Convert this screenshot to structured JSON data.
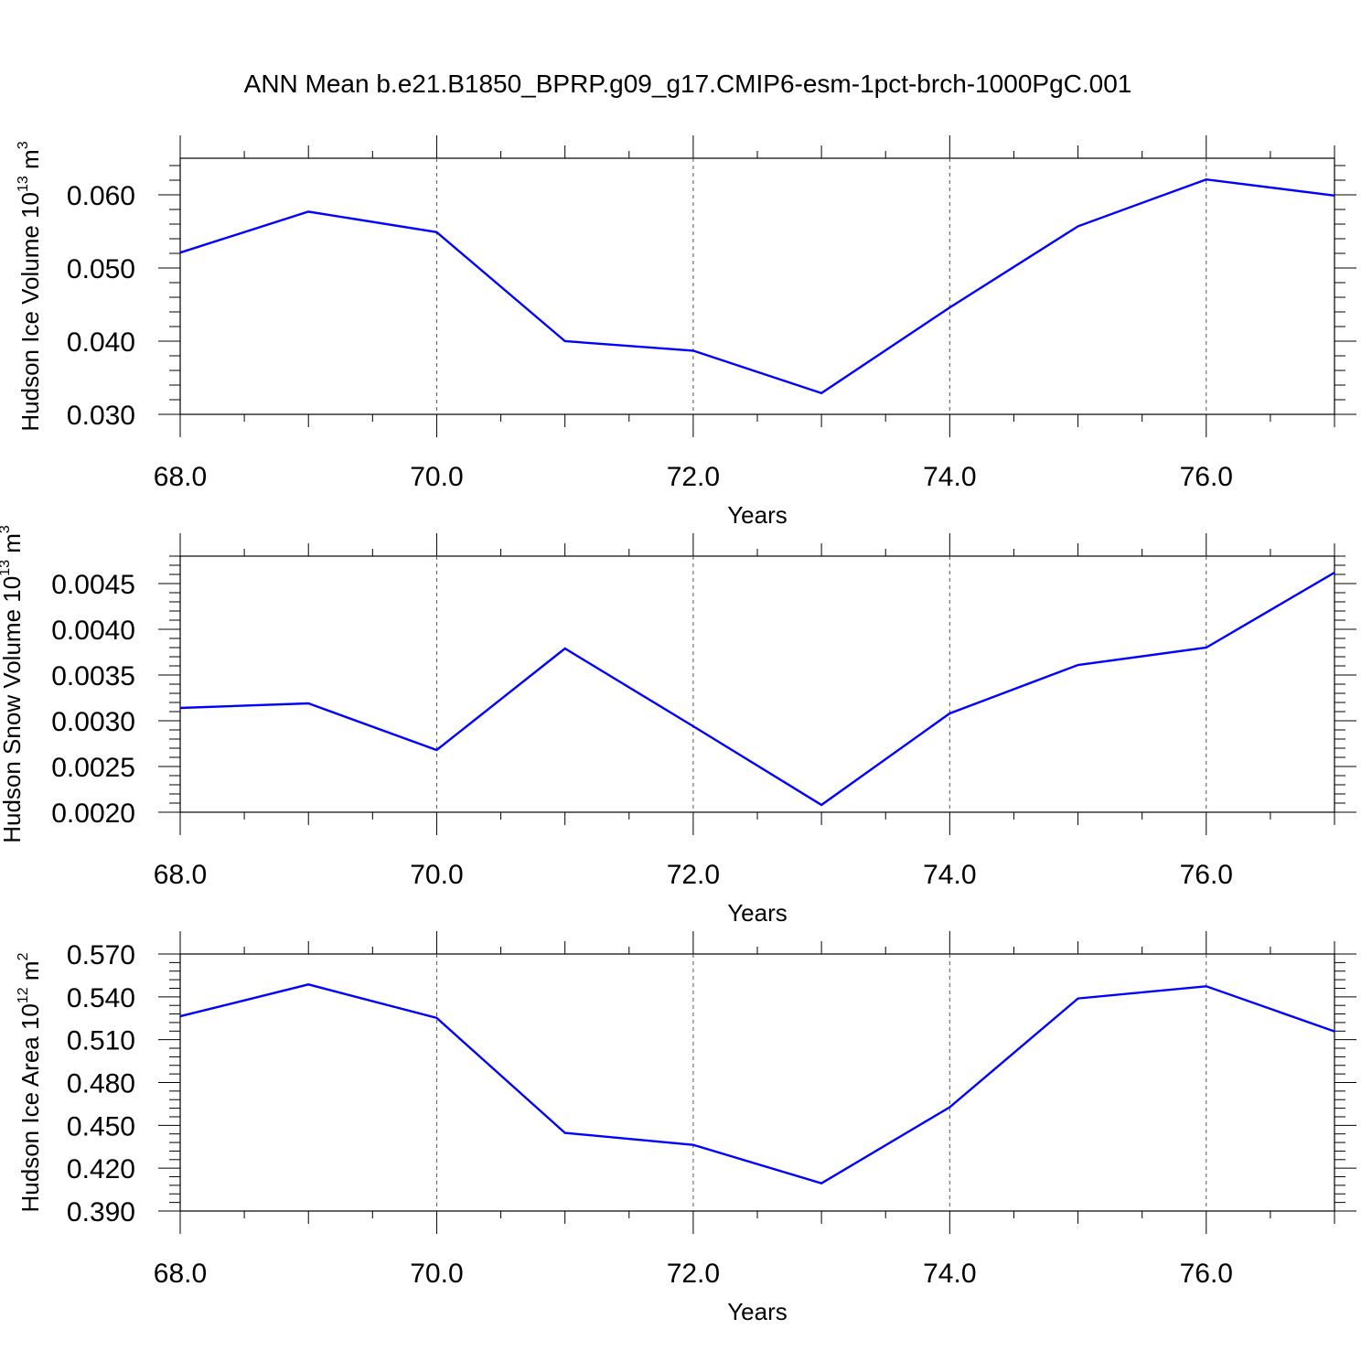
{
  "title": "ANN Mean b.e21.B1850_BPRP.g09_g17.CMIP6-esm-1pct-brch-1000PgC.001",
  "chart_data": [
    {
      "type": "line",
      "xlabel": "Years",
      "ylabel": "Hudson Ice Volume 10",
      "ylabel_exp": "13",
      "ylabel_unit": " m",
      "ylabel_unit_exp": "3",
      "x": [
        68,
        69,
        70,
        71,
        72,
        73,
        74,
        75,
        76,
        77
      ],
      "values": [
        0.0521,
        0.0577,
        0.0549,
        0.04,
        0.0387,
        0.0329,
        0.0446,
        0.0557,
        0.0621,
        0.0599
      ],
      "xlim": [
        68,
        77
      ],
      "ylim": [
        0.03,
        0.065
      ],
      "xticks": [
        "68.0",
        "70.0",
        "72.0",
        "74.0",
        "76.0"
      ],
      "yticks": [
        "0.030",
        "0.040",
        "0.050",
        "0.060"
      ],
      "grid": "vertical dashed at labeled x ticks",
      "line_color": "#0000ff"
    },
    {
      "type": "line",
      "xlabel": "Years",
      "ylabel": "Hudson Snow Volume 10",
      "ylabel_exp": "13",
      "ylabel_unit": " m",
      "ylabel_unit_exp": "3",
      "x": [
        68,
        69,
        70,
        71,
        72,
        73,
        74,
        75,
        76,
        77
      ],
      "values": [
        0.00314,
        0.00319,
        0.00268,
        0.00379,
        0.00294,
        0.00208,
        0.00308,
        0.00361,
        0.0038,
        0.00462
      ],
      "xlim": [
        68,
        77
      ],
      "ylim": [
        0.002,
        0.0048
      ],
      "xticks": [
        "68.0",
        "70.0",
        "72.0",
        "74.0",
        "76.0"
      ],
      "yticks": [
        "0.0020",
        "0.0025",
        "0.0030",
        "0.0035",
        "0.0040",
        "0.0045"
      ],
      "grid": "vertical dashed at labeled x ticks",
      "line_color": "#0000ff"
    },
    {
      "type": "line",
      "xlabel": "Years",
      "ylabel": "Hudson Ice Area 10",
      "ylabel_exp": "12",
      "ylabel_unit": " m",
      "ylabel_unit_exp": "2",
      "x": [
        68,
        69,
        70,
        71,
        72,
        73,
        74,
        75,
        76,
        77
      ],
      "values": [
        0.5264,
        0.5487,
        0.5252,
        0.4447,
        0.4363,
        0.4094,
        0.4627,
        0.5389,
        0.5474,
        0.5158
      ],
      "xlim": [
        68,
        77
      ],
      "ylim": [
        0.39,
        0.57
      ],
      "xticks": [
        "68.0",
        "70.0",
        "72.0",
        "74.0",
        "76.0"
      ],
      "yticks": [
        "0.390",
        "0.420",
        "0.450",
        "0.480",
        "0.510",
        "0.540",
        "0.570"
      ],
      "grid": "vertical dashed at labeled x ticks",
      "line_color": "#0000ff"
    }
  ]
}
